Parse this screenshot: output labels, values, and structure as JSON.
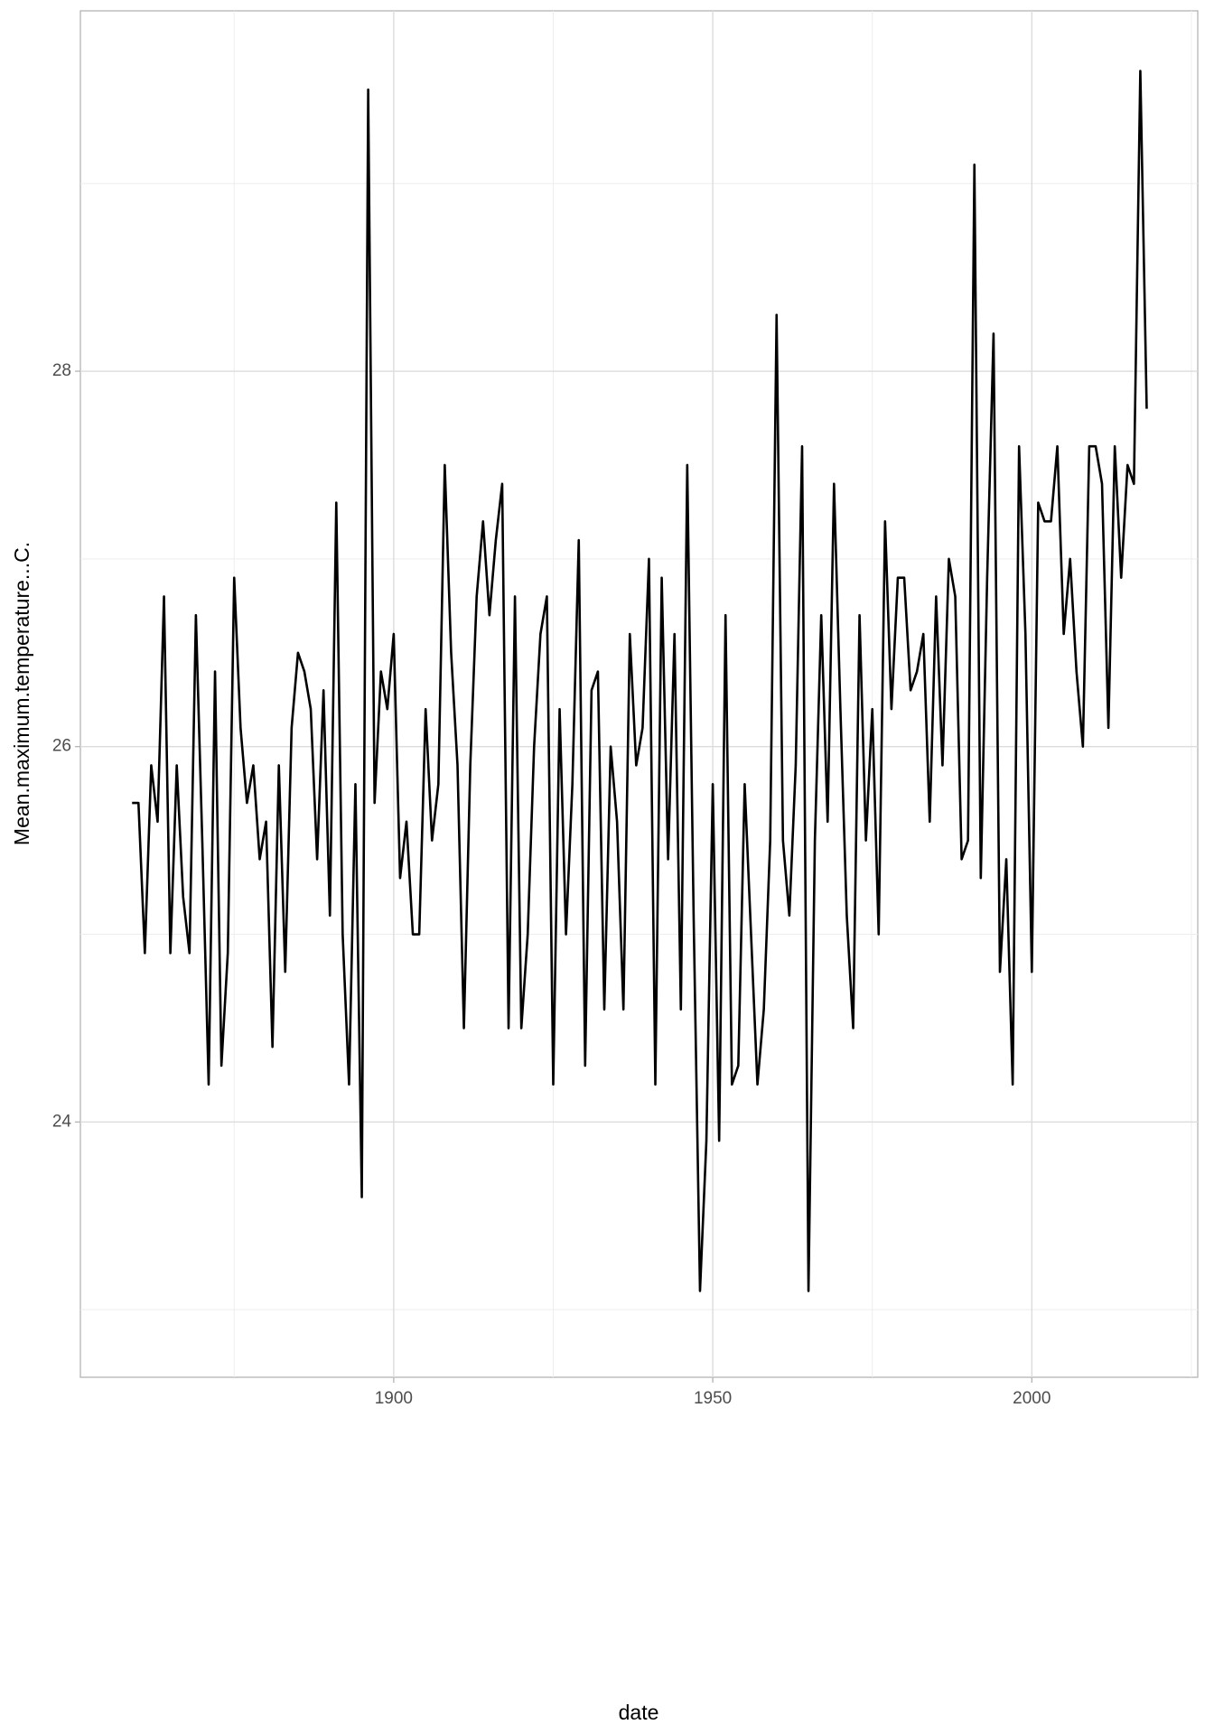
{
  "chart_data": {
    "type": "line",
    "x_label": "date",
    "y_label": "Mean.maximum.temperature...C.",
    "x": [
      1859,
      1860,
      1861,
      1862,
      1863,
      1864,
      1865,
      1866,
      1867,
      1868,
      1869,
      1870,
      1871,
      1872,
      1873,
      1874,
      1875,
      1876,
      1877,
      1878,
      1879,
      1880,
      1881,
      1882,
      1883,
      1884,
      1885,
      1886,
      1887,
      1888,
      1889,
      1890,
      1891,
      1892,
      1893,
      1894,
      1895,
      1896,
      1897,
      1898,
      1899,
      1900,
      1901,
      1902,
      1903,
      1904,
      1905,
      1906,
      1907,
      1908,
      1909,
      1910,
      1911,
      1912,
      1913,
      1914,
      1915,
      1916,
      1917,
      1918,
      1919,
      1920,
      1921,
      1922,
      1923,
      1924,
      1925,
      1926,
      1927,
      1928,
      1929,
      1930,
      1931,
      1932,
      1933,
      1934,
      1935,
      1936,
      1937,
      1938,
      1939,
      1940,
      1941,
      1942,
      1943,
      1944,
      1945,
      1946,
      1947,
      1948,
      1949,
      1950,
      1951,
      1952,
      1953,
      1954,
      1955,
      1956,
      1957,
      1958,
      1959,
      1960,
      1961,
      1962,
      1963,
      1964,
      1965,
      1966,
      1967,
      1968,
      1969,
      1970,
      1971,
      1972,
      1973,
      1974,
      1975,
      1976,
      1977,
      1978,
      1979,
      1980,
      1981,
      1982,
      1983,
      1984,
      1985,
      1986,
      1987,
      1988,
      1989,
      1990,
      1991,
      1992,
      1993,
      1994,
      1995,
      1996,
      1997,
      1998,
      1999,
      2000,
      2001,
      2002,
      2003,
      2004,
      2005,
      2006,
      2007,
      2008,
      2009,
      2010,
      2011,
      2012,
      2013,
      2014,
      2015,
      2016,
      2017,
      2018
    ],
    "series": [
      {
        "color": "#000000",
        "values": [
          25.7,
          25.7,
          24.9,
          25.9,
          25.6,
          26.8,
          24.9,
          25.9,
          25.2,
          24.9,
          26.7,
          25.5,
          24.2,
          26.4,
          24.3,
          24.9,
          26.9,
          26.1,
          25.7,
          25.9,
          25.4,
          25.6,
          24.4,
          25.9,
          24.8,
          26.1,
          26.5,
          26.4,
          26.2,
          25.4,
          26.3,
          25.1,
          27.3,
          25.0,
          24.2,
          25.8,
          23.6,
          29.5,
          25.7,
          26.4,
          26.2,
          26.6,
          25.3,
          25.6,
          25.0,
          25.0,
          26.2,
          25.5,
          25.8,
          27.5,
          26.5,
          25.9,
          24.5,
          25.9,
          26.8,
          27.2,
          26.7,
          27.1,
          27.4,
          24.5,
          26.8,
          24.5,
          25.0,
          26.0,
          26.6,
          26.8,
          24.2,
          26.2,
          25.0,
          25.8,
          27.1,
          24.3,
          26.3,
          26.4,
          24.6,
          26.0,
          25.6,
          24.6,
          26.6,
          25.9,
          26.1,
          27.0,
          24.2,
          26.9,
          25.4,
          26.6,
          24.6,
          27.5,
          25.1,
          23.1,
          23.9,
          25.8,
          23.9,
          26.7,
          24.2,
          24.3,
          25.8,
          25.0,
          24.2,
          24.6,
          25.5,
          28.3,
          25.5,
          25.1,
          25.9,
          27.6,
          23.1,
          25.5,
          26.7,
          25.6,
          27.4,
          26.2,
          25.1,
          24.5,
          26.7,
          25.5,
          26.2,
          25.0,
          27.2,
          26.2,
          26.9,
          26.9,
          26.3,
          26.4,
          26.6,
          25.6,
          26.8,
          25.9,
          27.0,
          26.8,
          25.4,
          25.5,
          29.1,
          25.3,
          26.9,
          28.2,
          24.8,
          25.4,
          24.2,
          27.6,
          26.6,
          24.8,
          27.3,
          27.2,
          27.2,
          27.6,
          26.6,
          27.0,
          26.4,
          26.0,
          27.6,
          27.6,
          27.4,
          26.1,
          27.6,
          26.9,
          27.5,
          27.4,
          29.6,
          27.8
        ]
      }
    ],
    "xlim": [
      1850.9,
      2026
    ],
    "ylim": [
      22.64,
      29.92
    ],
    "xticks": [
      1900,
      1950,
      2000
    ],
    "yticks": [
      24,
      26,
      28
    ],
    "minor_xticks": [
      1875,
      1925,
      1975,
      2025
    ],
    "minor_yticks": [
      23,
      25,
      27,
      29
    ],
    "grid": true
  }
}
